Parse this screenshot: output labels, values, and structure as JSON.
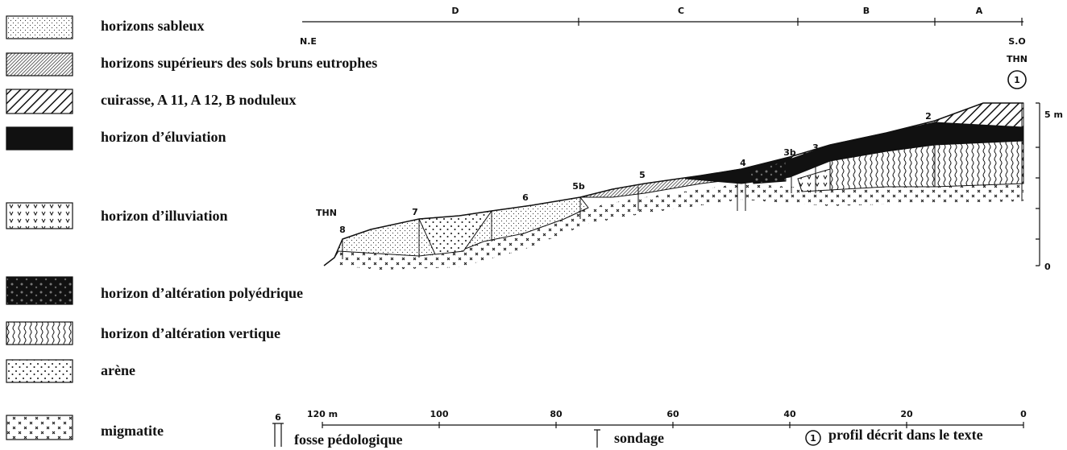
{
  "legend": [
    {
      "label": "horizons sableux"
    },
    {
      "label": "horizons supérieurs des sols bruns eutrophes"
    },
    {
      "label": "cuirasse, A 11, A 12, B noduleux"
    },
    {
      "label": "horizon d’éluviation"
    },
    {
      "label": "horizon d’illuviation"
    },
    {
      "label": "horizon d’altération polyédrique"
    },
    {
      "label": "horizon d’altération vertique"
    },
    {
      "label": "arène"
    },
    {
      "label": "migmatite"
    }
  ],
  "sections": [
    "D",
    "C",
    "B",
    "A"
  ],
  "profile": {
    "left_end": "N.E",
    "right_end": "S.O",
    "right_site": "THN",
    "right_profile": "1",
    "left_site": "THN",
    "profiles": [
      "8",
      "7",
      "6",
      "5b",
      "5",
      "4",
      "3b",
      "3",
      "2"
    ]
  },
  "scale": {
    "labels": [
      "120 m",
      "100",
      "80",
      "60",
      "40",
      "20",
      "0"
    ]
  },
  "height_scale": {
    "labels": [
      "5 m",
      "0"
    ]
  },
  "key": {
    "pit_number": "6",
    "pit": "fosse pédologique",
    "borehole": "sondage",
    "profile_number": "1",
    "profile": "profil décrit dans le texte"
  }
}
